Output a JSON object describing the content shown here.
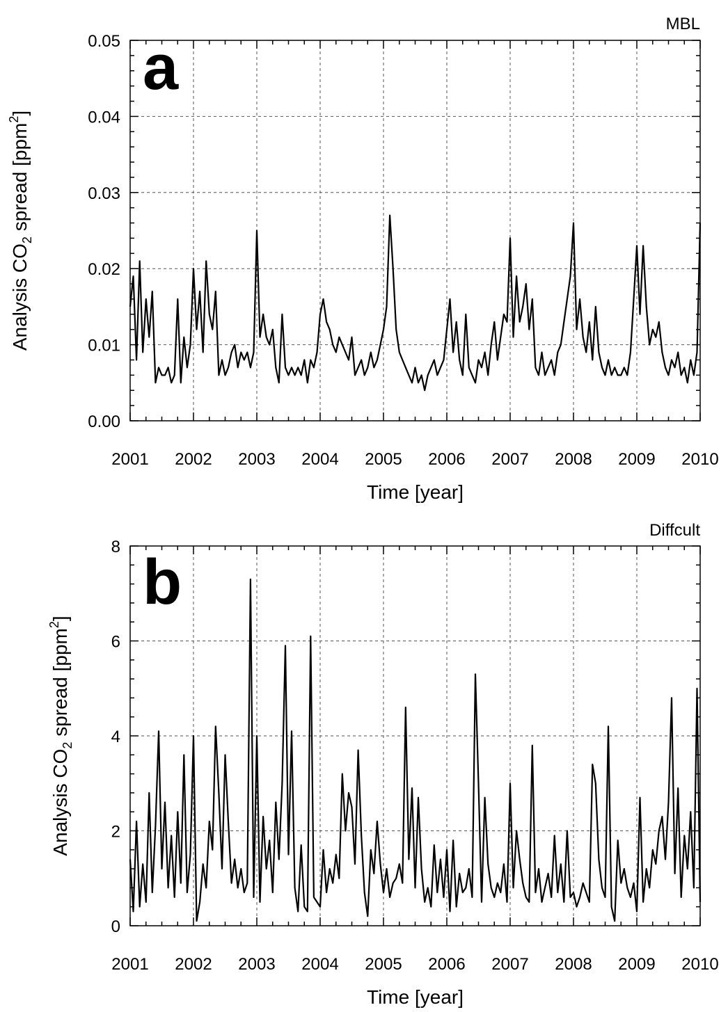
{
  "chart_data": [
    {
      "type": "line",
      "panel_letter": "a",
      "region": "MBL",
      "xlabel": "Time [year]",
      "ylabel_parts": [
        "Analysis CO",
        "2",
        " spread [ppm",
        "2",
        "]"
      ],
      "xlim": [
        2001,
        2010
      ],
      "ylim": [
        0,
        0.05
      ],
      "grid": true,
      "x_ticks": [
        2001,
        2002,
        2003,
        2004,
        2005,
        2006,
        2007,
        2008,
        2009,
        2010
      ],
      "x_tick_labels": [
        "2001",
        "2002",
        "2003",
        "2004",
        "2005",
        "2006",
        "2007",
        "2008",
        "2009",
        "2010"
      ],
      "y_ticks": [
        0,
        0.01,
        0.02,
        0.03,
        0.04,
        0.05
      ],
      "y_tick_labels": [
        "0.00",
        "0.01",
        "0.02",
        "0.03",
        "0.04",
        "0.05"
      ],
      "series": [
        {
          "x": [
            2001.0,
            2001.05,
            2001.1,
            2001.15,
            2001.2,
            2001.25,
            2001.3,
            2001.35,
            2001.4,
            2001.45,
            2001.5,
            2001.55,
            2001.6,
            2001.65,
            2001.7,
            2001.75,
            2001.8,
            2001.85,
            2001.9,
            2001.95,
            2002.0,
            2002.05,
            2002.1,
            2002.15,
            2002.2,
            2002.25,
            2002.3,
            2002.35,
            2002.4,
            2002.45,
            2002.5,
            2002.55,
            2002.6,
            2002.65,
            2002.7,
            2002.75,
            2002.8,
            2002.85,
            2002.9,
            2002.95,
            2003.0,
            2003.05,
            2003.1,
            2003.15,
            2003.2,
            2003.25,
            2003.3,
            2003.35,
            2003.4,
            2003.45,
            2003.5,
            2003.55,
            2003.6,
            2003.65,
            2003.7,
            2003.75,
            2003.8,
            2003.85,
            2003.9,
            2003.95,
            2004.0,
            2004.05,
            2004.1,
            2004.15,
            2004.2,
            2004.25,
            2004.3,
            2004.35,
            2004.4,
            2004.45,
            2004.5,
            2004.55,
            2004.6,
            2004.65,
            2004.7,
            2004.75,
            2004.8,
            2004.85,
            2004.9,
            2004.95,
            2005.0,
            2005.05,
            2005.1,
            2005.15,
            2005.2,
            2005.25,
            2005.3,
            2005.35,
            2005.4,
            2005.45,
            2005.5,
            2005.55,
            2005.6,
            2005.65,
            2005.7,
            2005.75,
            2005.8,
            2005.85,
            2005.9,
            2005.95,
            2006.0,
            2006.05,
            2006.1,
            2006.15,
            2006.2,
            2006.25,
            2006.3,
            2006.35,
            2006.4,
            2006.45,
            2006.5,
            2006.55,
            2006.6,
            2006.65,
            2006.7,
            2006.75,
            2006.8,
            2006.85,
            2006.9,
            2006.95,
            2007.0,
            2007.05,
            2007.1,
            2007.15,
            2007.2,
            2007.25,
            2007.3,
            2007.35,
            2007.4,
            2007.45,
            2007.5,
            2007.55,
            2007.6,
            2007.65,
            2007.7,
            2007.75,
            2007.8,
            2007.85,
            2007.9,
            2007.95,
            2008.0,
            2008.05,
            2008.1,
            2008.15,
            2008.2,
            2008.25,
            2008.3,
            2008.35,
            2008.4,
            2008.45,
            2008.5,
            2008.55,
            2008.6,
            2008.65,
            2008.7,
            2008.75,
            2008.8,
            2008.85,
            2008.9,
            2008.95,
            2009.0,
            2009.05,
            2009.1,
            2009.15,
            2009.2,
            2009.25,
            2009.3,
            2009.35,
            2009.4,
            2009.45,
            2009.5,
            2009.55,
            2009.6,
            2009.65,
            2009.7,
            2009.75,
            2009.8,
            2009.85,
            2009.9,
            2009.95,
            2010.0
          ],
          "y": [
            0.015,
            0.019,
            0.008,
            0.021,
            0.009,
            0.016,
            0.011,
            0.017,
            0.005,
            0.007,
            0.006,
            0.006,
            0.007,
            0.005,
            0.006,
            0.016,
            0.005,
            0.011,
            0.007,
            0.01,
            0.02,
            0.012,
            0.017,
            0.009,
            0.021,
            0.014,
            0.012,
            0.017,
            0.006,
            0.008,
            0.006,
            0.007,
            0.009,
            0.01,
            0.007,
            0.009,
            0.008,
            0.009,
            0.007,
            0.009,
            0.025,
            0.011,
            0.014,
            0.011,
            0.01,
            0.012,
            0.007,
            0.005,
            0.014,
            0.007,
            0.006,
            0.007,
            0.006,
            0.007,
            0.006,
            0.008,
            0.005,
            0.008,
            0.007,
            0.009,
            0.014,
            0.016,
            0.013,
            0.012,
            0.01,
            0.009,
            0.011,
            0.01,
            0.009,
            0.008,
            0.011,
            0.006,
            0.007,
            0.008,
            0.006,
            0.007,
            0.009,
            0.007,
            0.008,
            0.01,
            0.012,
            0.015,
            0.027,
            0.02,
            0.012,
            0.009,
            0.008,
            0.007,
            0.006,
            0.005,
            0.007,
            0.005,
            0.006,
            0.004,
            0.006,
            0.007,
            0.008,
            0.006,
            0.007,
            0.008,
            0.012,
            0.016,
            0.009,
            0.013,
            0.008,
            0.006,
            0.014,
            0.007,
            0.006,
            0.005,
            0.008,
            0.007,
            0.009,
            0.006,
            0.01,
            0.013,
            0.008,
            0.011,
            0.014,
            0.013,
            0.024,
            0.011,
            0.019,
            0.013,
            0.015,
            0.018,
            0.012,
            0.016,
            0.007,
            0.006,
            0.009,
            0.006,
            0.007,
            0.008,
            0.006,
            0.009,
            0.01,
            0.013,
            0.016,
            0.019,
            0.026,
            0.012,
            0.016,
            0.011,
            0.009,
            0.013,
            0.008,
            0.015,
            0.009,
            0.007,
            0.006,
            0.008,
            0.006,
            0.007,
            0.006,
            0.006,
            0.007,
            0.006,
            0.009,
            0.016,
            0.023,
            0.014,
            0.023,
            0.015,
            0.01,
            0.012,
            0.011,
            0.013,
            0.009,
            0.007,
            0.006,
            0.008,
            0.007,
            0.009,
            0.006,
            0.007,
            0.005,
            0.008,
            0.006,
            0.009,
            0.026
          ]
        }
      ]
    },
    {
      "type": "line",
      "panel_letter": "b",
      "region": "Diffcult",
      "xlabel": "Time [year]",
      "ylabel_parts": [
        "Analysis CO",
        "2",
        " spread [ppm",
        "2",
        "]"
      ],
      "xlim": [
        2001,
        2010
      ],
      "ylim": [
        0,
        8
      ],
      "grid": true,
      "x_ticks": [
        2001,
        2002,
        2003,
        2004,
        2005,
        2006,
        2007,
        2008,
        2009,
        2010
      ],
      "x_tick_labels": [
        "2001",
        "2002",
        "2003",
        "2004",
        "2005",
        "2006",
        "2007",
        "2008",
        "2009",
        "2010"
      ],
      "y_ticks": [
        0,
        2,
        4,
        6,
        8
      ],
      "y_tick_labels": [
        "0",
        "2",
        "4",
        "6",
        "8"
      ],
      "series": [
        {
          "x": [
            2001.0,
            2001.05,
            2001.1,
            2001.15,
            2001.2,
            2001.25,
            2001.3,
            2001.35,
            2001.4,
            2001.45,
            2001.5,
            2001.55,
            2001.6,
            2001.65,
            2001.7,
            2001.75,
            2001.8,
            2001.85,
            2001.9,
            2001.95,
            2002.0,
            2002.05,
            2002.1,
            2002.15,
            2002.2,
            2002.25,
            2002.3,
            2002.35,
            2002.4,
            2002.45,
            2002.5,
            2002.55,
            2002.6,
            2002.65,
            2002.7,
            2002.75,
            2002.8,
            2002.85,
            2002.9,
            2002.95,
            2003.0,
            2003.05,
            2003.1,
            2003.15,
            2003.2,
            2003.25,
            2003.3,
            2003.35,
            2003.4,
            2003.45,
            2003.5,
            2003.55,
            2003.6,
            2003.65,
            2003.7,
            2003.75,
            2003.8,
            2003.85,
            2003.9,
            2003.95,
            2004.0,
            2004.05,
            2004.1,
            2004.15,
            2004.2,
            2004.25,
            2004.3,
            2004.35,
            2004.4,
            2004.45,
            2004.5,
            2004.55,
            2004.6,
            2004.65,
            2004.7,
            2004.75,
            2004.8,
            2004.85,
            2004.9,
            2004.95,
            2005.0,
            2005.05,
            2005.1,
            2005.15,
            2005.2,
            2005.25,
            2005.3,
            2005.35,
            2005.4,
            2005.45,
            2005.5,
            2005.55,
            2005.6,
            2005.65,
            2005.7,
            2005.75,
            2005.8,
            2005.85,
            2005.9,
            2005.95,
            2006.0,
            2006.05,
            2006.1,
            2006.15,
            2006.2,
            2006.25,
            2006.3,
            2006.35,
            2006.4,
            2006.45,
            2006.5,
            2006.55,
            2006.6,
            2006.65,
            2006.7,
            2006.75,
            2006.8,
            2006.85,
            2006.9,
            2006.95,
            2007.0,
            2007.05,
            2007.1,
            2007.15,
            2007.2,
            2007.25,
            2007.3,
            2007.35,
            2007.4,
            2007.45,
            2007.5,
            2007.55,
            2007.6,
            2007.65,
            2007.7,
            2007.75,
            2007.8,
            2007.85,
            2007.9,
            2007.95,
            2008.0,
            2008.05,
            2008.1,
            2008.15,
            2008.2,
            2008.25,
            2008.3,
            2008.35,
            2008.4,
            2008.45,
            2008.5,
            2008.55,
            2008.6,
            2008.65,
            2008.7,
            2008.75,
            2008.8,
            2008.85,
            2008.9,
            2008.95,
            2009.0,
            2009.05,
            2009.1,
            2009.15,
            2009.2,
            2009.25,
            2009.3,
            2009.35,
            2009.4,
            2009.45,
            2009.5,
            2009.55,
            2009.6,
            2009.65,
            2009.7,
            2009.75,
            2009.8,
            2009.85,
            2009.9,
            2009.95,
            2010.0
          ],
          "y": [
            1.4,
            0.3,
            2.2,
            0.4,
            1.3,
            0.5,
            2.8,
            0.7,
            2.1,
            4.1,
            1.2,
            2.6,
            0.8,
            1.9,
            0.6,
            2.4,
            0.9,
            3.6,
            0.7,
            1.5,
            4.0,
            0.1,
            0.5,
            1.3,
            0.8,
            2.2,
            1.6,
            4.2,
            2.8,
            1.2,
            3.6,
            2.2,
            0.9,
            1.4,
            0.8,
            1.2,
            0.7,
            0.9,
            7.3,
            0.6,
            4.0,
            0.5,
            2.3,
            1.2,
            1.8,
            0.7,
            2.6,
            1.4,
            3.0,
            5.9,
            1.5,
            4.1,
            0.8,
            0.3,
            1.7,
            0.4,
            0.3,
            6.1,
            0.6,
            0.5,
            0.4,
            1.6,
            0.7,
            1.2,
            0.9,
            1.5,
            1.0,
            3.2,
            2.0,
            2.8,
            2.5,
            1.3,
            3.7,
            1.9,
            0.7,
            0.2,
            1.6,
            1.1,
            2.2,
            1.3,
            0.7,
            1.2,
            0.6,
            0.9,
            1.0,
            1.3,
            0.9,
            4.6,
            1.4,
            2.9,
            0.8,
            2.7,
            1.2,
            0.5,
            0.8,
            0.4,
            1.7,
            0.7,
            1.4,
            0.6,
            1.6,
            0.3,
            1.8,
            0.4,
            1.1,
            0.7,
            0.8,
            1.2,
            0.6,
            5.3,
            3.0,
            0.5,
            2.7,
            1.3,
            0.8,
            0.6,
            0.9,
            0.7,
            1.3,
            0.5,
            3.0,
            0.8,
            2.0,
            1.4,
            0.9,
            0.6,
            0.5,
            3.8,
            0.7,
            1.2,
            0.5,
            0.8,
            1.1,
            0.6,
            1.9,
            0.7,
            1.3,
            0.5,
            2.0,
            0.6,
            0.7,
            0.4,
            0.6,
            0.9,
            0.7,
            0.5,
            3.4,
            3.0,
            1.4,
            0.8,
            0.6,
            4.2,
            0.4,
            0.1,
            1.8,
            0.9,
            1.2,
            0.8,
            0.6,
            0.9,
            0.3,
            2.7,
            0.5,
            1.2,
            0.8,
            1.6,
            1.3,
            2.0,
            2.3,
            1.4,
            2.6,
            4.8,
            1.1,
            2.9,
            0.6,
            1.9,
            1.2,
            2.4,
            0.8,
            5.0,
            0.5
          ]
        }
      ]
    }
  ]
}
